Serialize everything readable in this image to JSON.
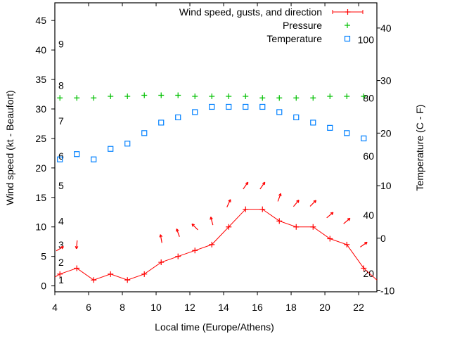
{
  "chart_data": {
    "type": "line",
    "xlabel": "Local time (Europe/Athens)",
    "ylabel": "Wind speed (kt - Beaufort)",
    "y2label": "Temperature (C - F)",
    "xlim": [
      4,
      23.08
    ],
    "ylim": [
      -1,
      48
    ],
    "y2lim": [
      -10.2,
      44.8
    ],
    "xticks": [
      4,
      6,
      8,
      10,
      12,
      14,
      16,
      18,
      20,
      22
    ],
    "yticks": [
      0,
      5,
      10,
      15,
      20,
      25,
      30,
      35,
      40,
      45
    ],
    "y2ticks": [
      -10,
      0,
      10,
      20,
      30,
      40
    ],
    "legend_position": "top-right",
    "legend": [
      "Wind speed, gusts, and direction",
      "Pressure",
      "Temperature"
    ],
    "beaufort_labels": [
      {
        "text": "1",
        "y": 1
      },
      {
        "text": "2",
        "y": 4
      },
      {
        "text": "3",
        "y": 7
      },
      {
        "text": "4",
        "y": 11
      },
      {
        "text": "5",
        "y": 17
      },
      {
        "text": "6",
        "y": 22
      },
      {
        "text": "7",
        "y": 28
      },
      {
        "text": "8",
        "y": 34
      },
      {
        "text": "9",
        "y": 41
      }
    ],
    "fahrenheit_labels": [
      {
        "text": "20",
        "y2": -6.7
      },
      {
        "text": "40",
        "y2": 4.4
      },
      {
        "text": "60",
        "y2": 15.6
      },
      {
        "text": "80",
        "y2": 26.7
      },
      {
        "text": "100",
        "y2": 37.8
      }
    ],
    "x": [
      4.3,
      5.3,
      6.3,
      7.3,
      8.3,
      9.3,
      10.3,
      11.3,
      12.3,
      13.3,
      14.3,
      15.3,
      16.3,
      17.3,
      18.3,
      19.3,
      20.3,
      21.3,
      22.3
    ],
    "series": [
      {
        "name": "Wind speed",
        "color": "#ff0000",
        "axis": "y",
        "values": [
          2,
          3,
          1,
          2,
          1,
          2,
          4,
          5,
          6,
          7,
          10,
          13,
          13,
          11,
          10,
          10,
          8,
          7,
          3
        ],
        "tail": {
          "x": 23.08,
          "y": 1
        }
      },
      {
        "name": "Gusts and direction",
        "color": "#ff0000",
        "axis": "y",
        "gusts": [
          6.3,
          7,
          null,
          null,
          null,
          null,
          8,
          9,
          10,
          11,
          14,
          17,
          17,
          15,
          14,
          14,
          12,
          11,
          7
        ],
        "direction_deg": [
          30,
          -95,
          null,
          null,
          null,
          null,
          100,
          110,
          135,
          105,
          65,
          55,
          55,
          70,
          50,
          45,
          40,
          40,
          35
        ]
      },
      {
        "name": "Pressure",
        "color": "#00c000",
        "axis": "y2",
        "values": [
          26.7,
          26.7,
          26.7,
          27.0,
          27.0,
          27.2,
          27.2,
          27.2,
          27.0,
          27.0,
          27.0,
          27.0,
          26.7,
          26.7,
          26.7,
          26.7,
          27.0,
          27.0,
          27.0
        ]
      },
      {
        "name": "Temperature",
        "color": "#0080ff",
        "axis": "y2",
        "values": [
          15,
          16,
          15,
          17,
          18,
          20,
          22,
          23,
          24,
          25,
          25,
          25,
          25,
          24,
          23,
          22,
          21,
          20,
          19
        ]
      }
    ]
  }
}
